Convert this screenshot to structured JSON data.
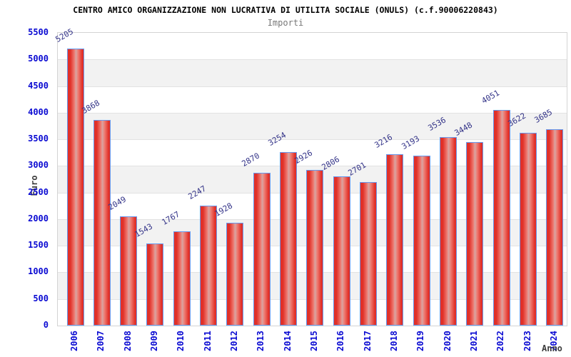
{
  "header": {
    "title": "CENTRO AMICO ORGANIZZAZIONE NON LUCRATIVA DI UTILITA SOCIALE (ONULS) (c.f.90006220843)",
    "subtitle": "Importi"
  },
  "chart_data": {
    "type": "bar",
    "title": "CENTRO AMICO ORGANIZZAZIONE NON LUCRATIVA DI UTILITA SOCIALE (ONULS) (c.f.90006220843)",
    "subtitle": "Importi",
    "xlabel": "Anno",
    "ylabel": "Euro",
    "categories": [
      "2006",
      "2007",
      "2008",
      "2009",
      "2010",
      "2011",
      "2012",
      "2013",
      "2014",
      "2015",
      "2016",
      "2017",
      "2018",
      "2019",
      "2020",
      "2021",
      "2022",
      "2023",
      "2024"
    ],
    "values": [
      5205,
      3868,
      2049,
      1543,
      1767,
      2247,
      1928,
      2870,
      3254,
      2926,
      2806,
      2701,
      3216,
      3193,
      3536,
      3448,
      4051,
      3622,
      3685
    ],
    "ylim": [
      0,
      5500
    ],
    "ytick_step": 500,
    "yticks": [
      "0",
      "500",
      "1000",
      "1500",
      "2000",
      "2500",
      "3000",
      "3500",
      "4000",
      "4500",
      "5000",
      "5500"
    ],
    "grid": true,
    "alternating_bands": true,
    "legend_position": "none",
    "colors": {
      "bar_fill": "#e13028",
      "bar_fill_center": "#d8a5a2",
      "bar_border": "#6699ee",
      "tick_label": "#0a0ad2",
      "value_label": "#333388",
      "band": "#f2f2f2",
      "gridline": "#e2e2e2",
      "axis_title": "#3c3c3c",
      "title": "#000000",
      "subtitle": "#787878",
      "background": "#ffffff"
    }
  }
}
